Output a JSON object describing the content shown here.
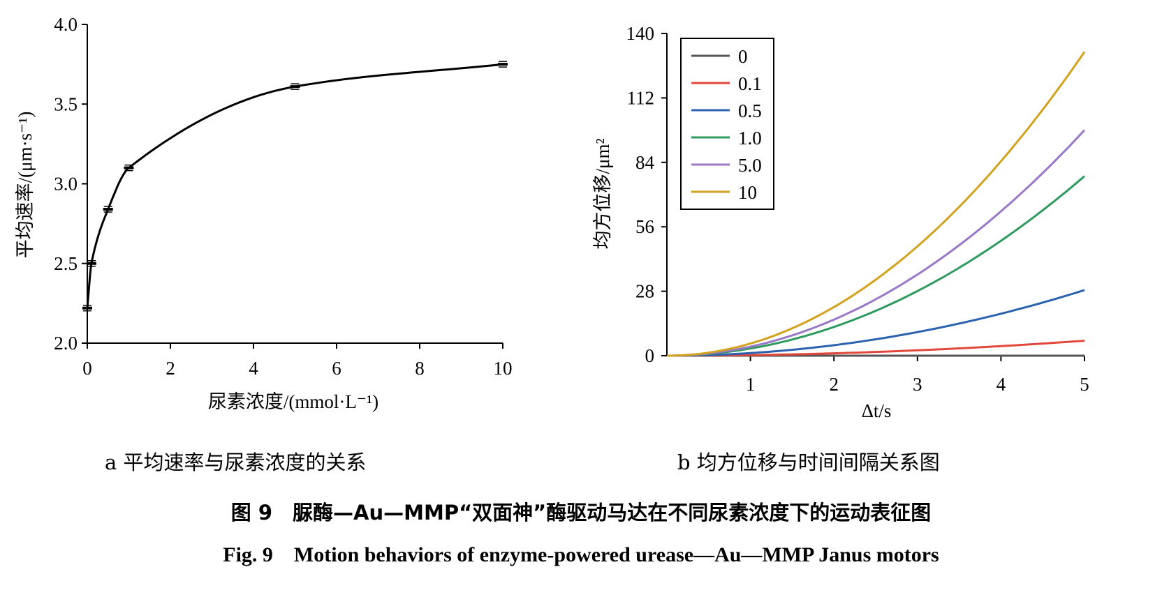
{
  "chart_data": [
    {
      "type": "scatter",
      "xlabel": "尿素浓度/(mmol·L⁻¹)",
      "ylabel": "平均速率/(μm·s⁻¹)",
      "xlim": [
        0,
        10
      ],
      "ylim": [
        2.0,
        4.0
      ],
      "xticks": [
        "0",
        "2",
        "4",
        "6",
        "8",
        "10"
      ],
      "yticks": [
        "2.0",
        "2.5",
        "3.0",
        "3.5",
        "4.0"
      ],
      "points": {
        "x": [
          0,
          0.1,
          0.5,
          1.0,
          5.0,
          10
        ],
        "y": [
          2.22,
          2.5,
          2.84,
          3.1,
          3.61,
          3.75
        ]
      },
      "fit_curve": true,
      "caption": "a 平均速率与尿素浓度的关系"
    },
    {
      "type": "line",
      "xlabel": "Δt/s",
      "ylabel": "均方位移/μm²",
      "xlim": [
        0,
        5
      ],
      "ylim": [
        0,
        140
      ],
      "xticks": [
        "1",
        "2",
        "3",
        "4",
        "5"
      ],
      "yticks": [
        "0",
        "28",
        "56",
        "84",
        "112",
        "140"
      ],
      "legend_position": "top-left",
      "series": [
        {
          "name": "0",
          "color": "#555555",
          "end_value": 0
        },
        {
          "name": "0.1",
          "color": "#e2473c",
          "end_value": 6.5
        },
        {
          "name": "0.5",
          "color": "#2a62b0",
          "end_value": 28.5
        },
        {
          "name": "1.0",
          "color": "#2f9a5e",
          "end_value": 78
        },
        {
          "name": "5.0",
          "color": "#9a78c8",
          "end_value": 98
        },
        {
          "name": "10",
          "color": "#d2a21e",
          "end_value": 132
        }
      ],
      "caption": "b 均方位移与时间间隔关系图"
    }
  ],
  "figure": {
    "caption_cn": "图 9　脲酶—Au—MMP“双面神”酶驱动马达在不同尿素浓度下的运动表征图",
    "caption_en": "Fig. 9　Motion behaviors of enzyme-powered urease—Au—MMP Janus motors"
  }
}
